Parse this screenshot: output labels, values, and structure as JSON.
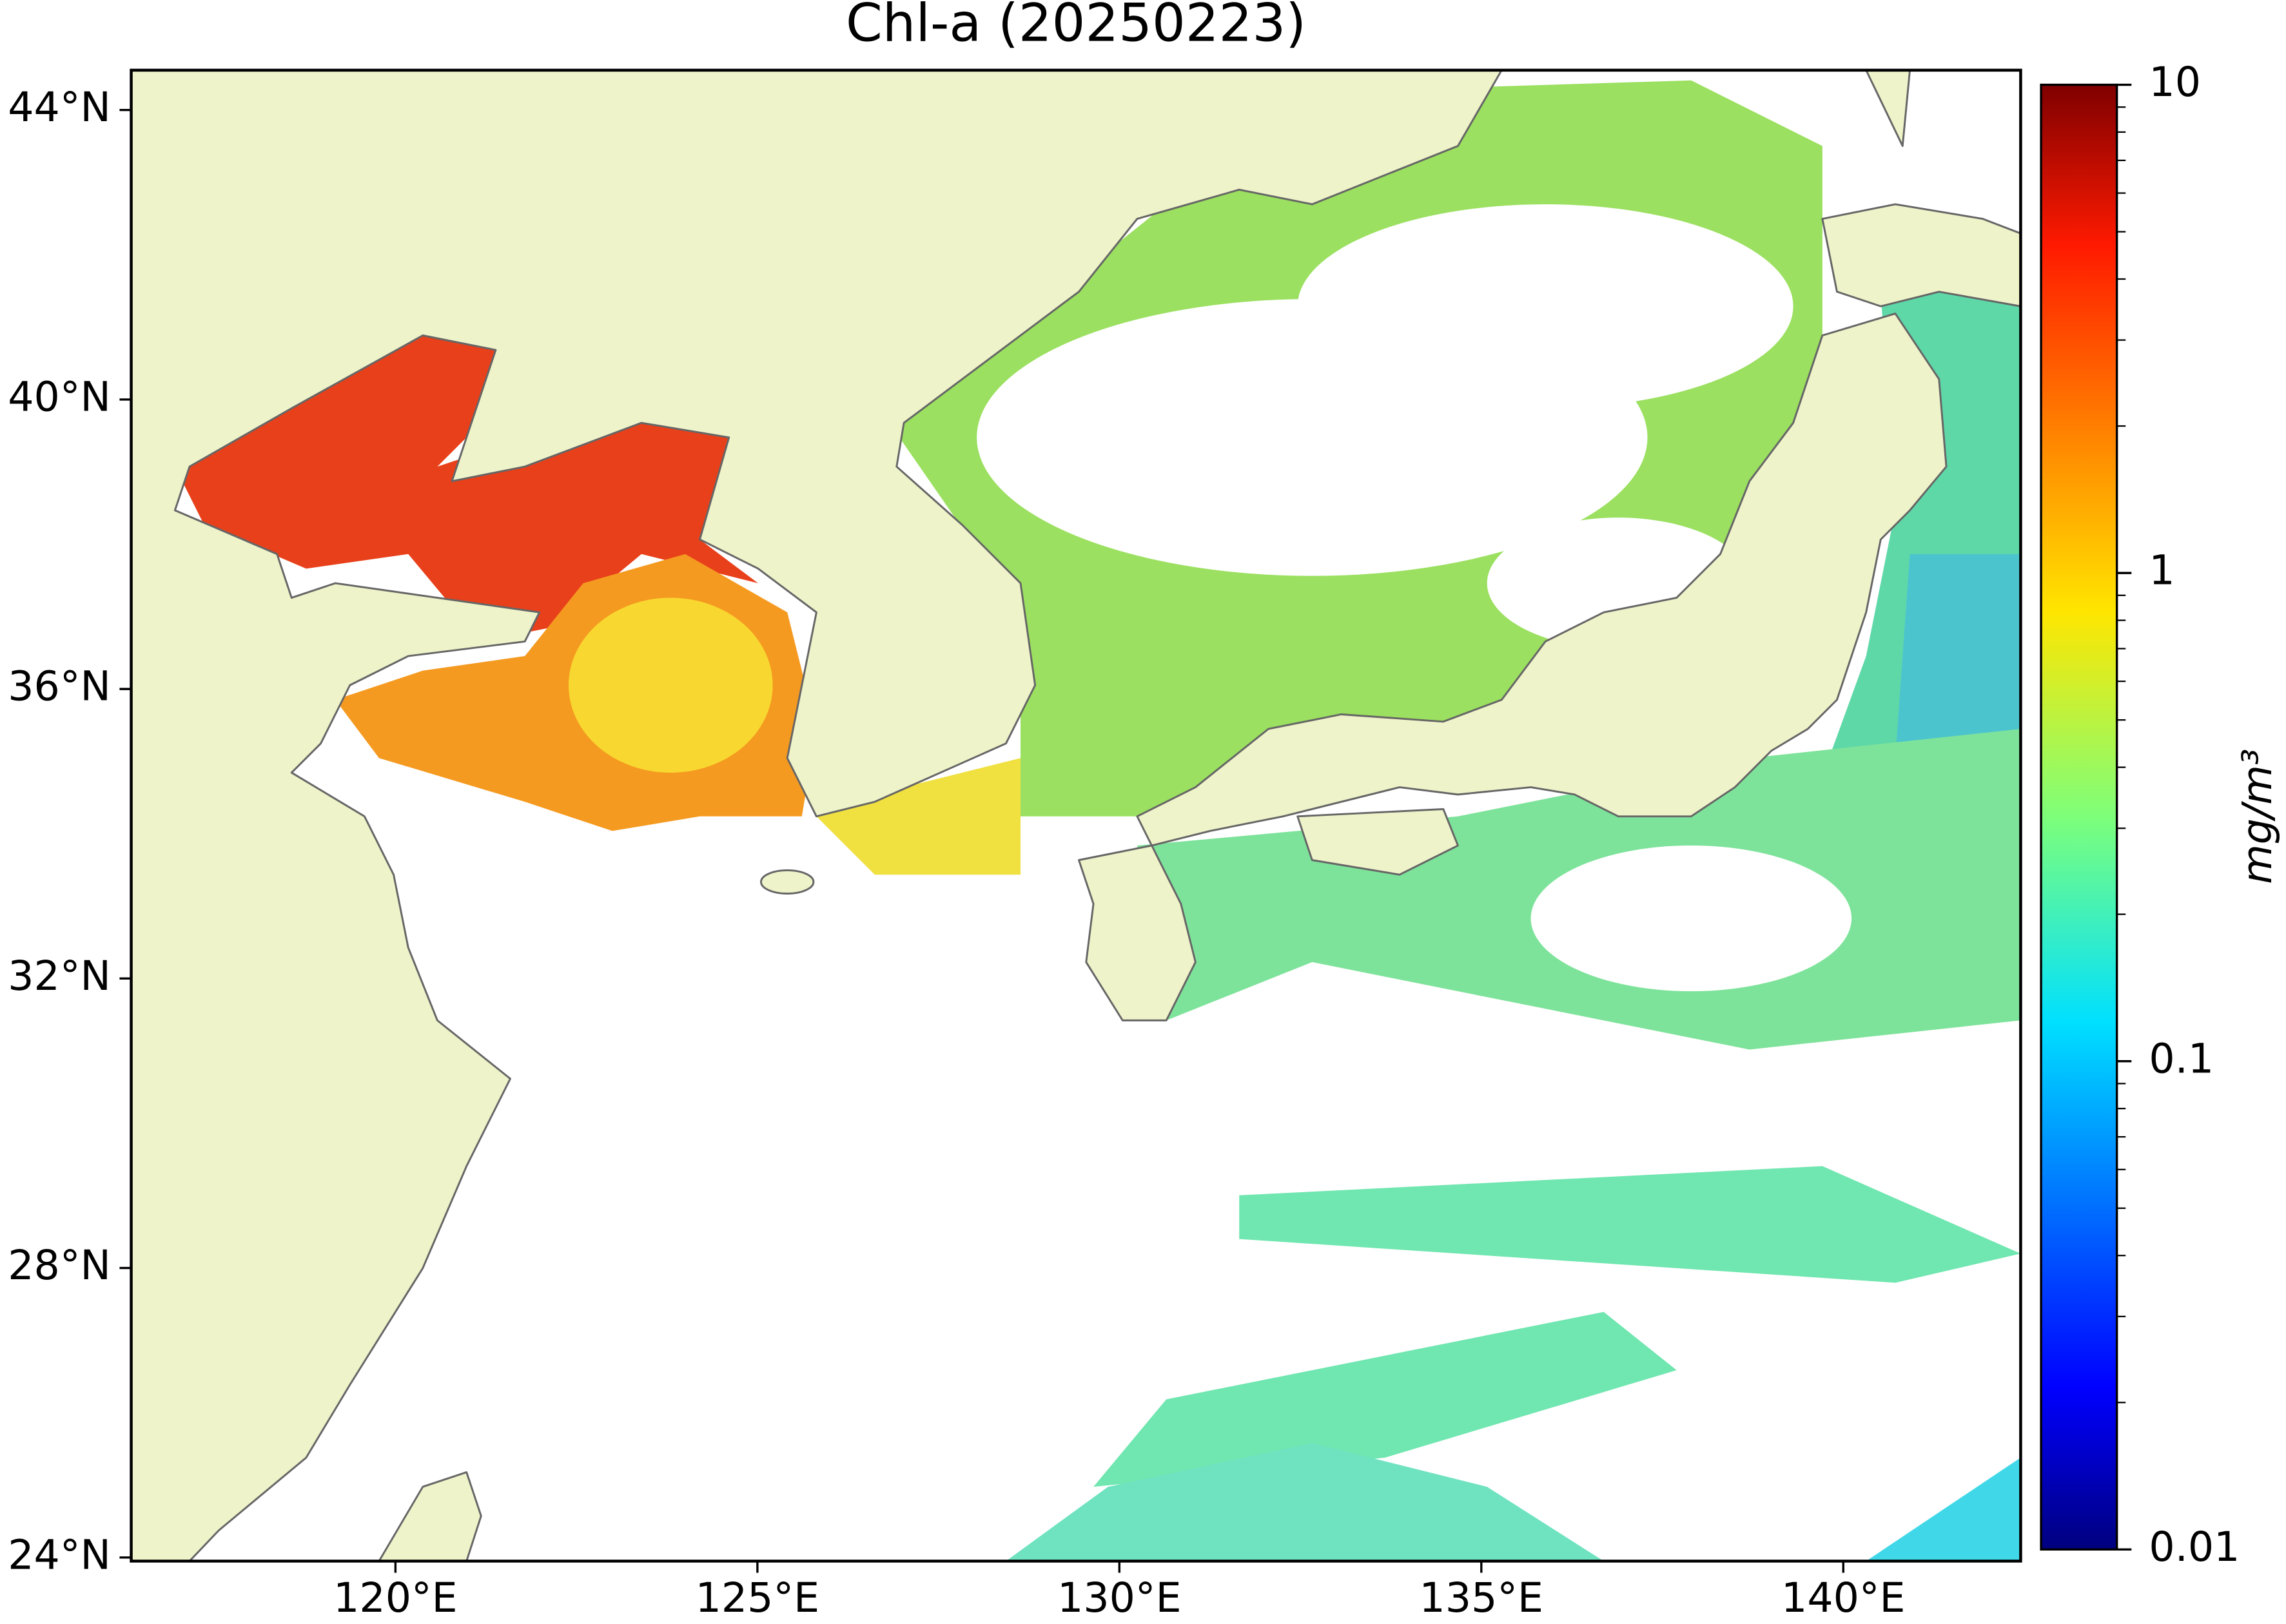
{
  "map": {
    "title": "Chl-a (20250223)",
    "lonlim": [
      116.35,
      142.45
    ],
    "latlim": [
      23.95,
      44.55
    ],
    "lon_ticks": [
      {
        "value": 120,
        "label": "120°E"
      },
      {
        "value": 125,
        "label": "125°E"
      },
      {
        "value": 130,
        "label": "130°E"
      },
      {
        "value": 135,
        "label": "135°E"
      },
      {
        "value": 140,
        "label": "140°E"
      }
    ],
    "lat_ticks": [
      {
        "value": 24,
        "label": "24°N"
      },
      {
        "value": 28,
        "label": "28°N"
      },
      {
        "value": 32,
        "label": "32°N"
      },
      {
        "value": 36,
        "label": "36°N"
      },
      {
        "value": 40,
        "label": "40°N"
      },
      {
        "value": 44,
        "label": "44°N"
      }
    ],
    "colorbar": {
      "label": "mg/m³",
      "scale": "log",
      "colormap": "jet",
      "lim": [
        0.01,
        10
      ],
      "ticks": [
        0.01,
        0.1,
        1,
        10
      ]
    }
  }
}
